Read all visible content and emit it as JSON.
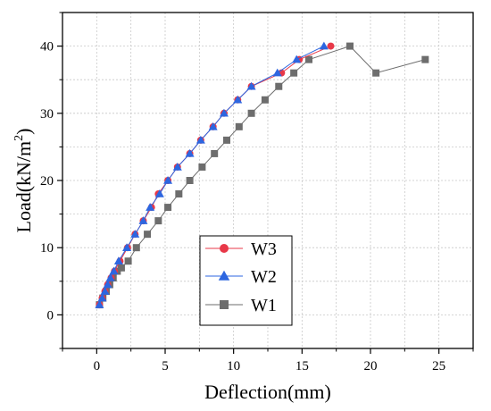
{
  "chart_data": {
    "type": "line",
    "xlabel": "Deflection(mm)",
    "ylabel_main": "Load(kN/m",
    "ylabel_sup": "2",
    "ylabel_close": ")",
    "xlim": [
      -2.5,
      27.5
    ],
    "ylim": [
      -5,
      45
    ],
    "xticks": [
      0,
      5,
      10,
      15,
      20,
      25
    ],
    "yticks": [
      0,
      10,
      20,
      30,
      40
    ],
    "x_tick_labels": [
      "0",
      "5",
      "10",
      "15",
      "20",
      "25"
    ],
    "y_tick_labels": [
      "0",
      "10",
      "20",
      "30",
      "40"
    ],
    "grid": true,
    "legend_position": "lower-center",
    "series": [
      {
        "name": "W1",
        "color": "#6d6d6d",
        "marker": "square",
        "x": [
          0.2,
          0.45,
          0.7,
          0.95,
          1.2,
          1.5,
          1.8,
          2.3,
          2.9,
          3.7,
          4.5,
          5.2,
          6.0,
          6.8,
          7.7,
          8.6,
          9.5,
          10.4,
          11.3,
          12.3,
          13.3,
          14.4,
          15.5,
          18.5,
          20.4,
          24.0
        ],
        "y": [
          1.5,
          2.5,
          3.5,
          4.5,
          5.5,
          6.5,
          7.0,
          8.0,
          10.0,
          12.0,
          14.0,
          16.0,
          18.0,
          20.0,
          22.0,
          24.0,
          26.0,
          28.0,
          30.0,
          32.0,
          34.0,
          36.0,
          38.0,
          40.0,
          36.0,
          38.0
        ]
      },
      {
        "name": "W2",
        "color": "#2d66e0",
        "marker": "triangle",
        "x": [
          0.2,
          0.4,
          0.6,
          0.8,
          1.0,
          1.25,
          1.6,
          2.2,
          2.8,
          3.4,
          3.9,
          4.6,
          5.2,
          5.9,
          6.8,
          7.6,
          8.5,
          9.3,
          10.3,
          11.3,
          13.2,
          14.6,
          16.6
        ],
        "y": [
          1.5,
          2.5,
          3.5,
          4.5,
          5.5,
          6.5,
          8.0,
          10.0,
          12.0,
          14.0,
          16.0,
          18.0,
          20.0,
          22.0,
          24.0,
          26.0,
          28.0,
          30.0,
          32.0,
          34.0,
          36.0,
          38.0,
          40.0
        ]
      },
      {
        "name": "W3",
        "color": "#e83848",
        "marker_fill": "#9c4a2c",
        "marker": "circle",
        "x": [
          0.2,
          0.4,
          0.6,
          0.8,
          1.05,
          1.3,
          1.7,
          2.25,
          2.8,
          3.4,
          4.0,
          4.5,
          5.2,
          5.9,
          6.8,
          7.6,
          8.5,
          9.3,
          10.3,
          11.3,
          13.5,
          14.8,
          17.1
        ],
        "y": [
          1.5,
          2.5,
          3.5,
          4.5,
          5.5,
          6.5,
          8.0,
          10.0,
          12.0,
          14.0,
          16.0,
          18.0,
          20.0,
          22.0,
          24.0,
          26.0,
          28.0,
          30.0,
          32.0,
          34.0,
          36.0,
          38.0,
          40.0
        ]
      }
    ],
    "legend_order": [
      "W3",
      "W2",
      "W1"
    ]
  }
}
